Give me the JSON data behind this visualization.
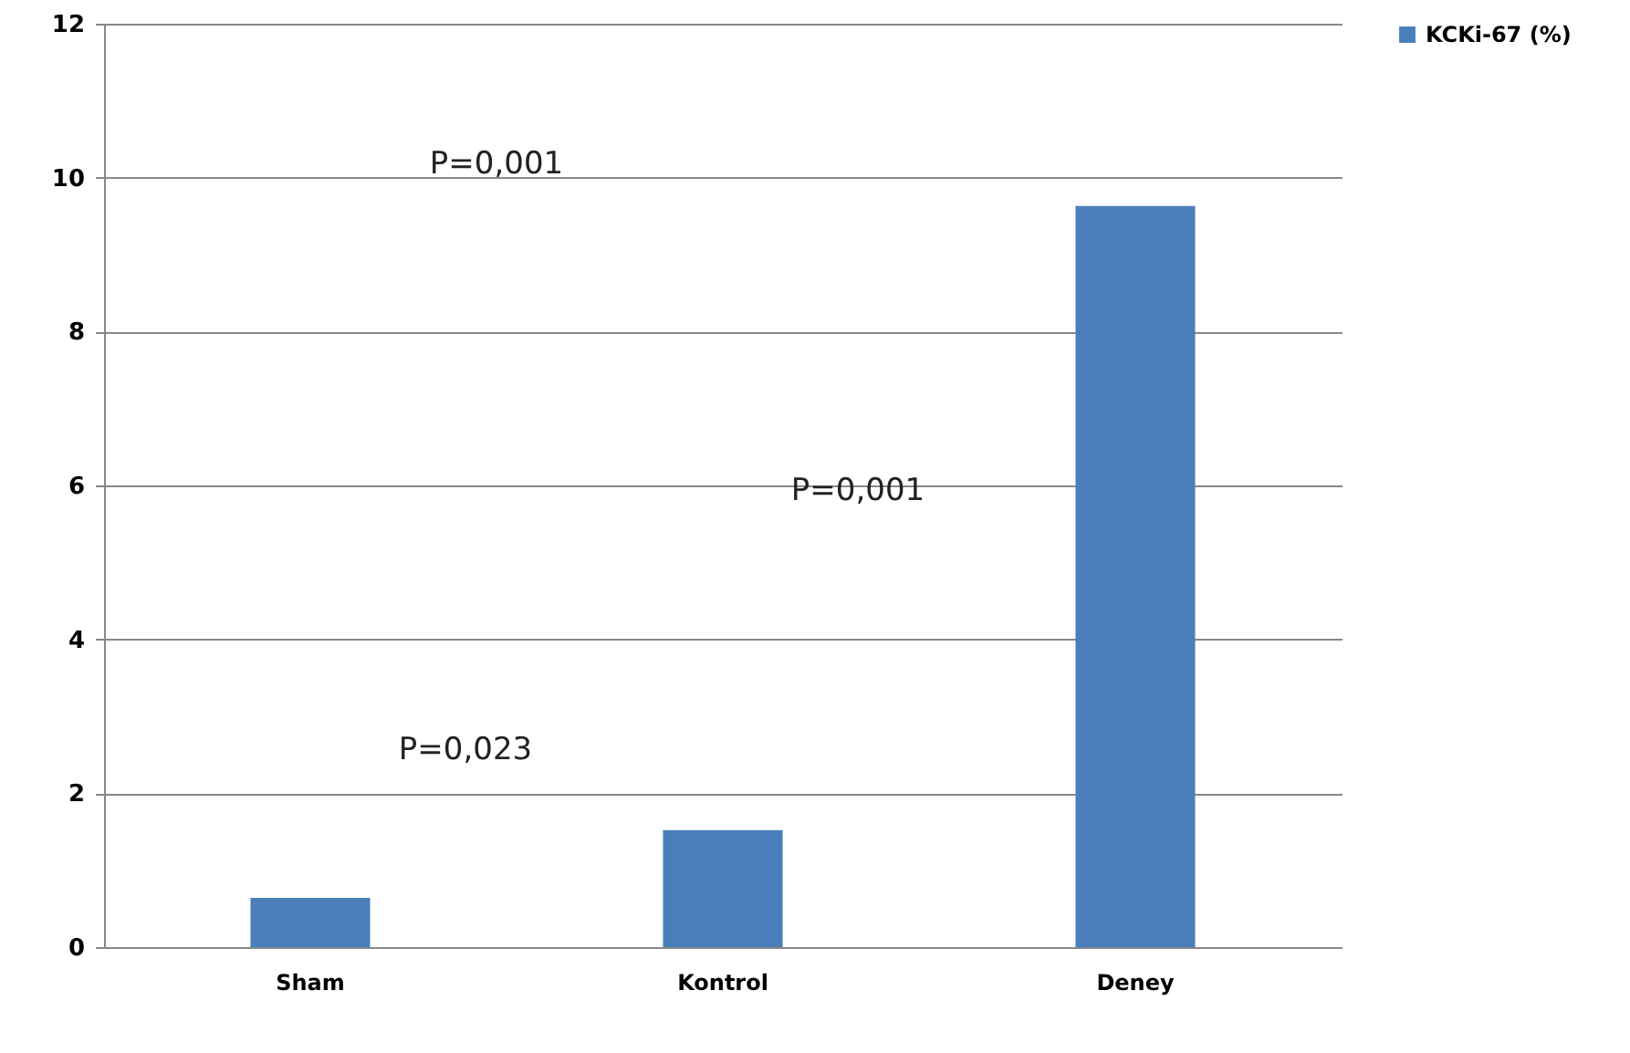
{
  "chart_data": {
    "type": "bar",
    "categories": [
      "Sham",
      "Kontrol",
      "Deney"
    ],
    "series": [
      {
        "name": "KCKi-67 (%)",
        "color": "#4a7ebb",
        "values": [
          0.64,
          1.52,
          9.63
        ]
      }
    ],
    "ylim": [
      0,
      12
    ],
    "yticks": [
      0,
      2,
      4,
      6,
      8,
      10,
      12
    ],
    "grid": "y",
    "legend": "right",
    "annotations": [
      "P=0,001",
      "P=0,001",
      "P=0,023"
    ]
  }
}
